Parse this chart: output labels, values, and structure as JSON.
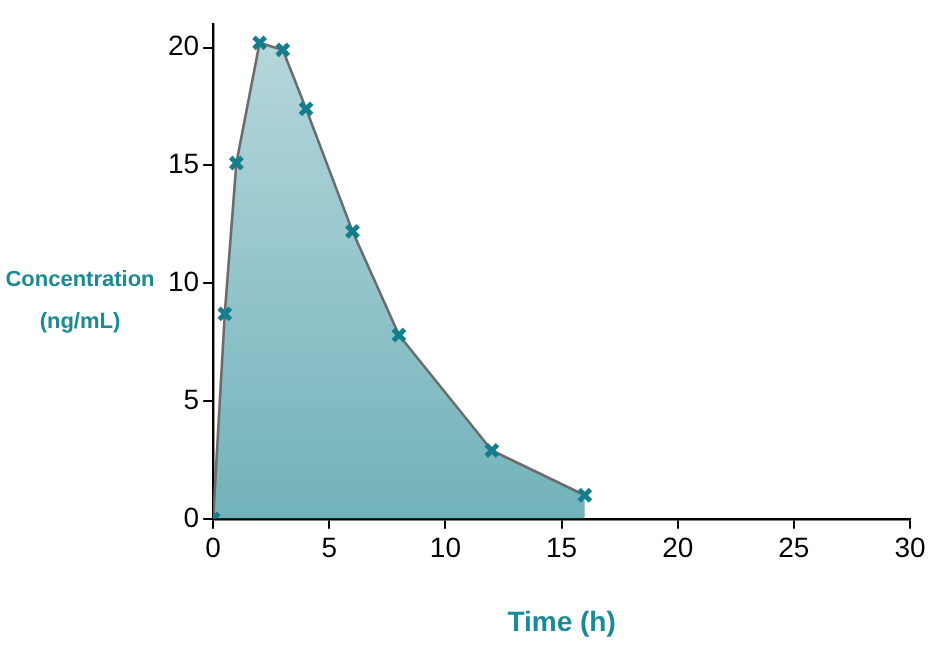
{
  "chart_data": {
    "type": "area",
    "xlabel": "Time (h)",
    "ylabel": "Concentration\n(ng/mL)",
    "x": [
      0,
      0.5,
      1,
      2,
      3,
      4,
      6,
      8,
      12,
      16
    ],
    "series": [
      {
        "color": "#137f8c",
        "values": [
          0,
          8.7,
          15.1,
          20.2,
          19.9,
          17.4,
          12.2,
          7.8,
          2.9,
          1.0
        ]
      }
    ],
    "xlim": [
      0,
      30
    ],
    "xticks": [
      0,
      5,
      10,
      15,
      20,
      25,
      30
    ],
    "ylim": [
      0,
      21
    ],
    "yticks": [
      0,
      5,
      10,
      15,
      20
    ],
    "grid": false,
    "legend": false,
    "marker": "cross",
    "line_style": "solid"
  }
}
